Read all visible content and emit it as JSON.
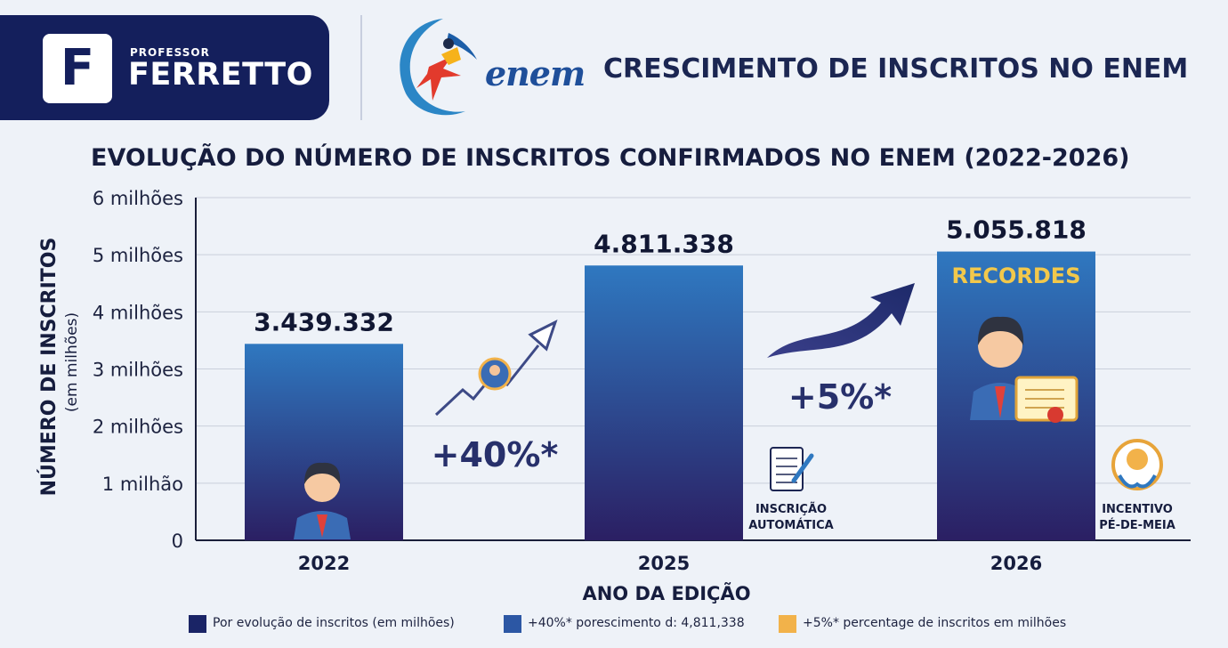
{
  "brand": {
    "small": "PROFESSOR",
    "big": "FERRETTO",
    "logo_letter": "F"
  },
  "enem_logo_text": "enem",
  "header_title": "CRESCIMENTO DE INSCRITOS NO ENEM",
  "chart_data": {
    "type": "bar",
    "title": "EVOLUÇÃO DO NÚMERO DE INSCRITOS CONFIRMADOS NO ENEM (2022-2026)",
    "xlabel": "ANO DA EDIÇÃO",
    "ylabel": "NÚMERO DE INSCRITOS",
    "ylabel_sub": "(em milhões)",
    "categories": [
      "2022",
      "2025",
      "2026"
    ],
    "values": [
      3439332,
      4811338,
      5055818
    ],
    "value_labels": [
      "3.439.332",
      "4.811.338",
      "5.055.818"
    ],
    "ylim": [
      0,
      6000000
    ],
    "yticks": [
      0,
      1000000,
      2000000,
      3000000,
      4000000,
      5000000,
      6000000
    ],
    "ytick_labels": [
      "0",
      "1 milhão",
      "2 milhões",
      "3 milhões",
      "4 milhões",
      "5 milhões",
      "6 milhões"
    ],
    "grid": true,
    "annotations": {
      "growth_1": "+40%*",
      "growth_2": "+5%*",
      "record": "RECORDES",
      "automatic": [
        "INSCRIÇÃO",
        "AUTOMÁTICA"
      ],
      "incentive": [
        "INCENTIVO",
        "PÉ-DE-MEIA"
      ]
    },
    "legend": [
      {
        "label": "Por evolução de inscritos (em milhões)",
        "color": "#1a2466"
      },
      {
        "label": "+40%* porescimento d: 4,811,338",
        "color": "#2c57a4"
      },
      {
        "label": "+5%* percentage de inscritos em milhões",
        "color": "#f2b24a"
      }
    ],
    "legend_position": "bottom",
    "colors": {
      "bar_top": "#2f78c0",
      "bar_bottom": "#2b1f63",
      "record_text": "#f2c84b",
      "growth_text": "#27306b"
    }
  }
}
